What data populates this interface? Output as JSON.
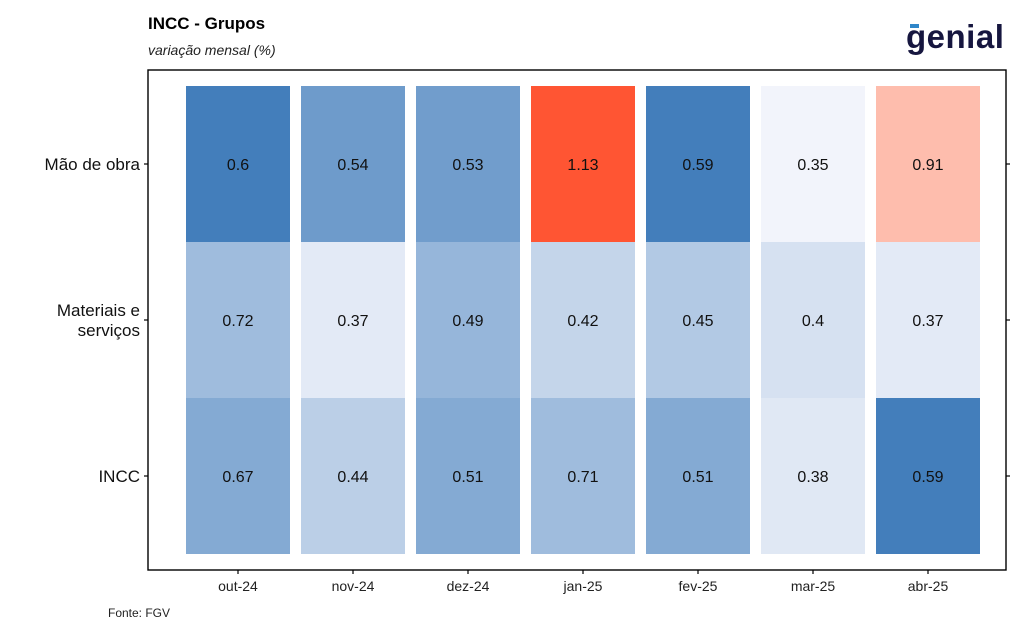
{
  "header": {
    "title": "INCC - Grupos",
    "subtitle": "variação mensal (%)",
    "logo_text": "genial"
  },
  "footer": {
    "source": "Fonte: FGV"
  },
  "colors": {
    "low": "#f2f4fb",
    "high": "#3a78b8",
    "peak_low": "#fde0d5",
    "peak_high": "#ff5533"
  },
  "chart_data": {
    "type": "heatmap",
    "title": "INCC - Grupos",
    "subtitle": "variação mensal (%)",
    "x": [
      "out-24",
      "nov-24",
      "dez-24",
      "jan-25",
      "fev-25",
      "mar-25",
      "abr-25"
    ],
    "y": [
      "Mão de obra",
      "Materiais e serviços",
      "INCC"
    ],
    "y_tick_lines": [
      [
        "Mão de obra"
      ],
      [
        "Materiais e",
        "serviços"
      ],
      [
        "INCC"
      ]
    ],
    "values": [
      [
        0.6,
        0.54,
        0.53,
        1.13,
        0.59,
        0.35,
        0.91
      ],
      [
        0.72,
        0.37,
        0.49,
        0.42,
        0.45,
        0.4,
        0.37
      ],
      [
        0.67,
        0.44,
        0.51,
        0.71,
        0.51,
        0.38,
        0.59
      ]
    ],
    "intensity": [
      [
        0.95,
        0.72,
        0.7,
        1.0,
        0.95,
        0.0,
        0.25
      ],
      [
        0.45,
        0.08,
        0.5,
        0.25,
        0.35,
        0.15,
        0.08
      ],
      [
        0.6,
        0.3,
        0.6,
        0.45,
        0.6,
        0.1,
        0.95
      ]
    ],
    "highlight": [
      [
        false,
        false,
        false,
        true,
        false,
        false,
        true
      ],
      [
        false,
        false,
        false,
        false,
        false,
        false,
        false
      ],
      [
        false,
        false,
        false,
        false,
        false,
        false,
        false
      ]
    ],
    "grid": false
  }
}
